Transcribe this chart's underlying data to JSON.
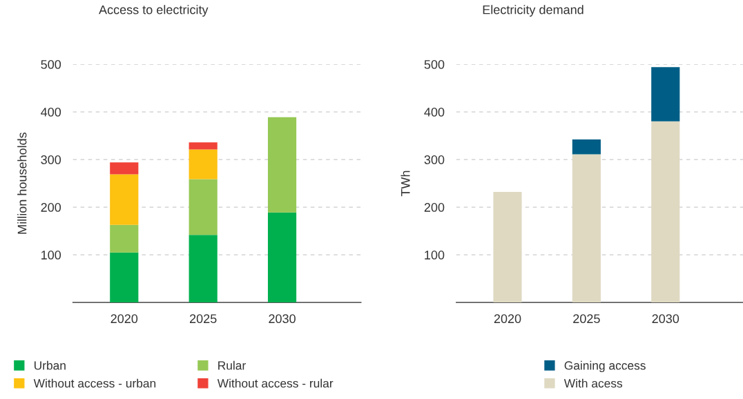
{
  "chart_data": [
    {
      "type": "bar",
      "title": "Access to electricity",
      "ylabel": "Million households",
      "stacked": true,
      "categories": [
        "2020",
        "2025",
        "2030"
      ],
      "series": [
        {
          "name": "Urban",
          "color": "#00b04f",
          "values": [
            105,
            142,
            189
          ]
        },
        {
          "name": "Rular",
          "color": "#96c855",
          "values": [
            58,
            117,
            200
          ]
        },
        {
          "name": "Without access - urban",
          "color": "#fdc110",
          "values": [
            106,
            62,
            null
          ]
        },
        {
          "name": "Without access - rular",
          "color": "#f04238",
          "values": [
            25,
            15,
            null
          ]
        }
      ],
      "ylim": [
        0,
        500
      ],
      "yticks": [
        100,
        200,
        300,
        400,
        500
      ],
      "grid": "y",
      "legend": "bottom left"
    },
    {
      "type": "bar",
      "title": "Electricity demand",
      "ylabel": "TWh",
      "stacked": true,
      "categories": [
        "2020",
        "2025",
        "2030"
      ],
      "series": [
        {
          "name": "With acess",
          "color": "#dfd9c2",
          "values": [
            232,
            311,
            380
          ]
        },
        {
          "name": "Gaining access",
          "color": "#005e86",
          "values": [
            null,
            31,
            114
          ]
        }
      ],
      "ylim": [
        0,
        500
      ],
      "yticks": [
        100,
        200,
        300,
        400,
        500
      ],
      "grid": "y",
      "legend": "bottom"
    }
  ]
}
